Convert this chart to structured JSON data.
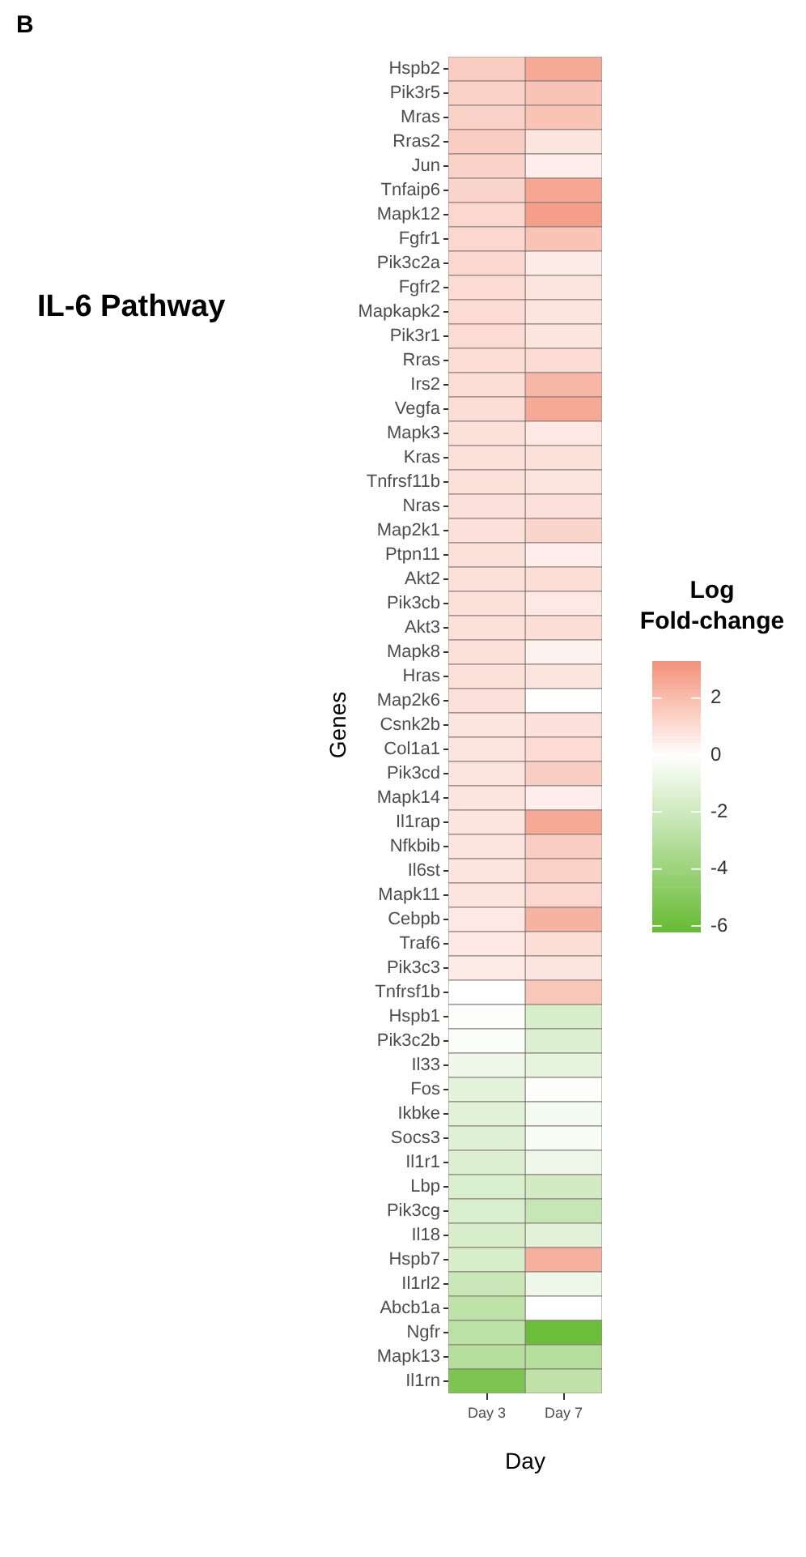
{
  "chart_data": {
    "type": "heatmap",
    "title": "IL-6 Pathway",
    "xlabel": "Day",
    "ylabel": "Genes",
    "clabel": "Log\nFold-change",
    "annotations": [
      "B"
    ],
    "categories": [
      "Day 3",
      "Day 7"
    ],
    "y_categories": [
      "Hspb2",
      "Pik3r5",
      "Mras",
      "Rras2",
      "Jun",
      "Tnfaip6",
      "Mapk12",
      "Fgfr1",
      "Pik3c2a",
      "Fgfr2",
      "Mapkapk2",
      "Pik3r1",
      "Rras",
      "Irs2",
      "Vegfa",
      "Mapk3",
      "Kras",
      "Tnfrsf11b",
      "Nras",
      "Map2k1",
      "Ptpn11",
      "Akt2",
      "Pik3cb",
      "Akt3",
      "Mapk8",
      "Hras",
      "Map2k6",
      "Csnk2b",
      "Col1a1",
      "Pik3cd",
      "Mapk14",
      "Il1rap",
      "Nfkbib",
      "Il6st",
      "Mapk11",
      "Cebpb",
      "Traf6",
      "Pik3c3",
      "Tnfrsf1b",
      "Hspb1",
      "Pik3c2b",
      "Il33",
      "Fos",
      "Ikbke",
      "Socs3",
      "Il1r1",
      "Lbp",
      "Pik3cg",
      "Il18",
      "Hspb7",
      "Il1rl2",
      "Abcb1a",
      "Ngfr",
      "Mapk13",
      "Il1rn"
    ],
    "cells": [
      [
        1.5,
        2.6
      ],
      [
        1.4,
        1.8
      ],
      [
        1.4,
        1.8
      ],
      [
        1.5,
        0.8
      ],
      [
        1.4,
        0.5
      ],
      [
        1.3,
        2.7
      ],
      [
        1.2,
        2.9
      ],
      [
        1.2,
        1.8
      ],
      [
        1.2,
        0.6
      ],
      [
        1.1,
        0.8
      ],
      [
        1.1,
        0.8
      ],
      [
        1.1,
        0.8
      ],
      [
        1.0,
        1.1
      ],
      [
        1.0,
        2.2
      ],
      [
        1.0,
        2.6
      ],
      [
        0.9,
        0.7
      ],
      [
        0.9,
        0.9
      ],
      [
        0.9,
        0.8
      ],
      [
        0.9,
        0.9
      ],
      [
        0.9,
        1.3
      ],
      [
        0.9,
        0.5
      ],
      [
        0.9,
        1.0
      ],
      [
        0.9,
        0.7
      ],
      [
        0.9,
        1.0
      ],
      [
        0.9,
        0.4
      ],
      [
        0.9,
        0.8
      ],
      [
        0.9,
        0.0
      ],
      [
        0.8,
        0.9
      ],
      [
        0.8,
        1.1
      ],
      [
        0.8,
        1.5
      ],
      [
        0.8,
        0.5
      ],
      [
        0.8,
        2.6
      ],
      [
        0.8,
        1.5
      ],
      [
        0.8,
        1.4
      ],
      [
        0.8,
        1.2
      ],
      [
        0.7,
        2.3
      ],
      [
        0.7,
        1.0
      ],
      [
        0.6,
        0.8
      ],
      [
        0.0,
        1.7
      ],
      [
        -0.1,
        -1.6
      ],
      [
        -0.2,
        -1.4
      ],
      [
        -0.6,
        -1.0
      ],
      [
        -1.1,
        -0.1
      ],
      [
        -1.2,
        -0.5
      ],
      [
        -1.3,
        -0.3
      ],
      [
        -1.4,
        -0.7
      ],
      [
        -1.5,
        -1.8
      ],
      [
        -1.5,
        -2.3
      ],
      [
        -1.6,
        -1.2
      ],
      [
        -1.6,
        2.4
      ],
      [
        -2.2,
        -0.7
      ],
      [
        -2.6,
        0.0
      ],
      [
        -2.7,
        -6.0
      ],
      [
        -3.0,
        -3.0
      ],
      [
        -5.3,
        -2.6
      ]
    ],
    "clim": [
      -6.2,
      3.3
    ],
    "cticks": [
      -6,
      -4,
      -2,
      0,
      2
    ]
  }
}
